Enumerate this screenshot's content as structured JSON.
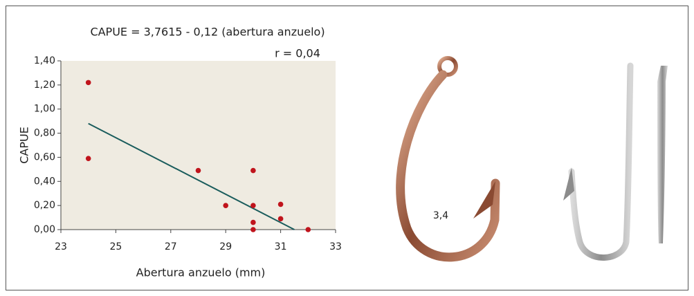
{
  "chart_data": {
    "type": "scatter",
    "title": "CAPUE = 3,7615 - 0,12 (abertura anzuelo)",
    "annotation": "r = 0,04",
    "x_label": "Abertura anzuelo (mm)",
    "y_label": "CAPUE",
    "x": [
      24,
      24,
      28,
      29,
      30,
      30,
      30,
      30,
      31,
      31,
      32
    ],
    "values": [
      1.22,
      0.59,
      0.49,
      0.2,
      0.49,
      0.2,
      0.06,
      0.0,
      0.21,
      0.09,
      0.0
    ],
    "color": "#c0141c",
    "trend_line": {
      "x": [
        24,
        31.5
      ],
      "values": [
        0.88,
        0
      ],
      "color": "#1a5c5c"
    },
    "xlim": [
      23,
      33
    ],
    "xticks": [
      23,
      25,
      27,
      29,
      31,
      33
    ],
    "ylim": [
      0,
      1.4
    ],
    "yticks": [
      {
        "value": 0,
        "label": "0,00"
      },
      {
        "value": 0.2,
        "label": "0,20"
      },
      {
        "value": 0.4,
        "label": "0,40"
      },
      {
        "value": 0.6,
        "label": "0,60"
      },
      {
        "value": 0.8,
        "label": "0,80"
      },
      {
        "value": 1,
        "label": "1,00"
      },
      {
        "value": 1.2,
        "label": "1,20"
      },
      {
        "value": 1.4,
        "label": "1,40"
      }
    ],
    "plot_background": "#efebe1",
    "image_label": "3,4"
  }
}
